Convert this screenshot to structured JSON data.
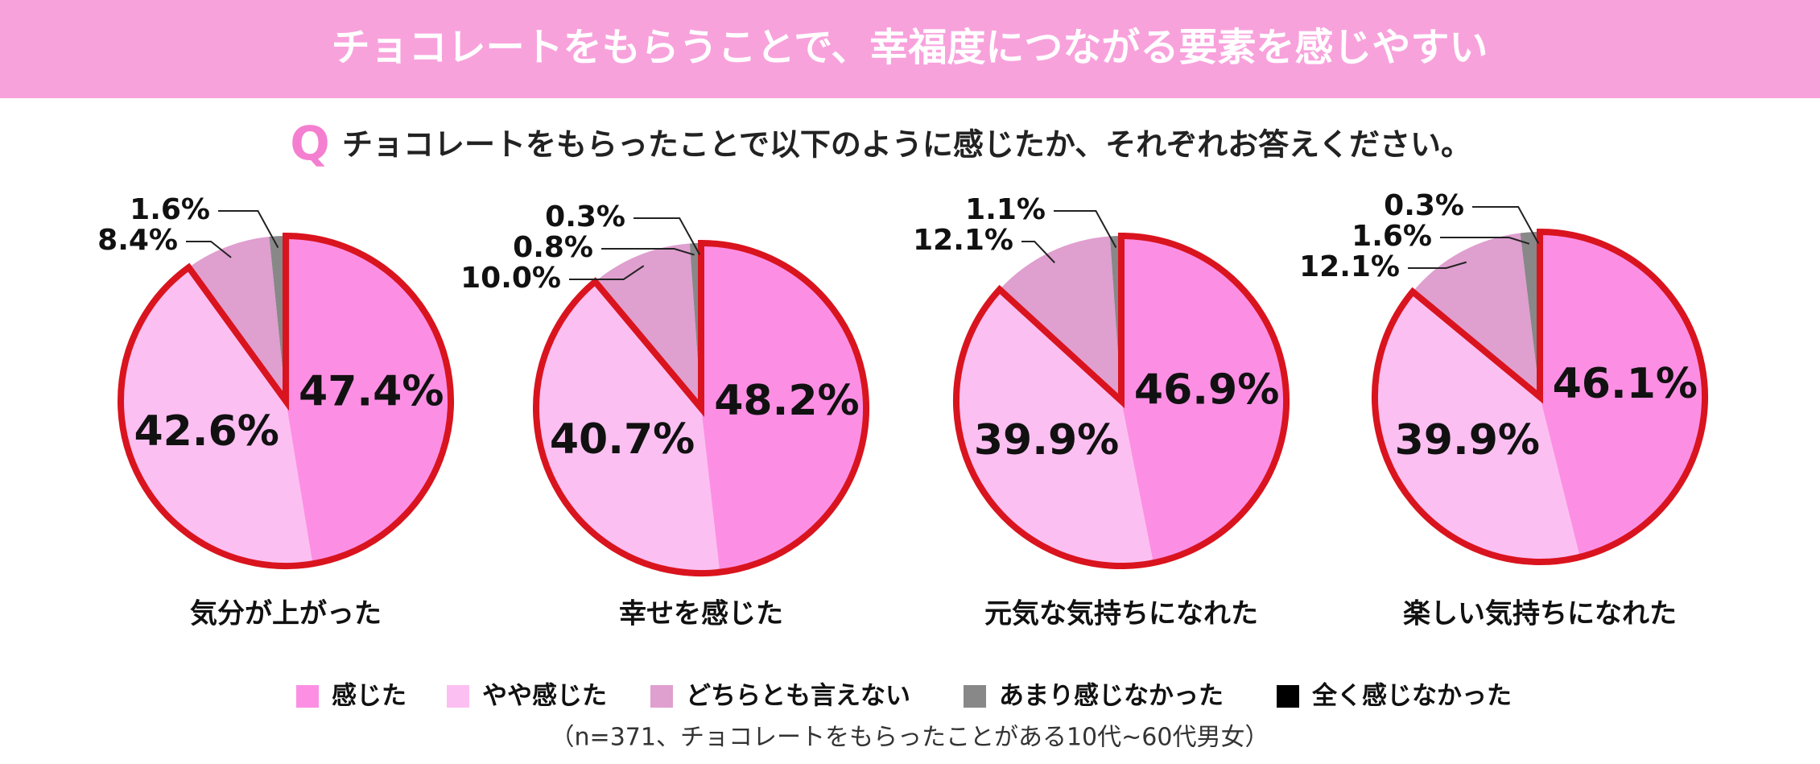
{
  "header": {
    "title": "チョコレートをもらうことで、幸福度につながる要素を感じやすい",
    "question_mark": "Q",
    "question": "チョコレートをもらったことで以下のように感じたか、それぞれお答えください。"
  },
  "chart_data": [
    {
      "type": "pie",
      "title": "気分が上がった",
      "categories": [
        "感じた",
        "やや感じた",
        "どちらとも言えない",
        "あまり感じなかった"
      ],
      "values": [
        47.4,
        42.6,
        8.4,
        1.6
      ],
      "value_labels": [
        "47.4%",
        "42.6%",
        "8.4%",
        "1.6%"
      ],
      "colors": [
        "#fc8fe4",
        "#fcbff1",
        "#df9fcf",
        "#888888"
      ]
    },
    {
      "type": "pie",
      "title": "幸せを感じた",
      "categories": [
        "感じた",
        "やや感じた",
        "どちらとも言えない",
        "あまり感じなかった",
        "全く感じなかった"
      ],
      "values": [
        48.2,
        40.7,
        10.0,
        0.8,
        0.3
      ],
      "value_labels": [
        "48.2%",
        "40.7%",
        "10.0%",
        "0.8%",
        "0.3%"
      ],
      "colors": [
        "#fc8fe4",
        "#fcbff1",
        "#df9fcf",
        "#888888",
        "#000000"
      ]
    },
    {
      "type": "pie",
      "title": "元気な気持ちになれた",
      "categories": [
        "感じた",
        "やや感じた",
        "どちらとも言えない",
        "あまり感じなかった"
      ],
      "values": [
        46.9,
        39.9,
        12.1,
        1.1
      ],
      "value_labels": [
        "46.9%",
        "39.9%",
        "12.1%",
        "1.1%"
      ],
      "colors": [
        "#fc8fe4",
        "#fcbff1",
        "#df9fcf",
        "#888888"
      ]
    },
    {
      "type": "pie",
      "title": "楽しい気持ちになれた",
      "categories": [
        "感じた",
        "やや感じた",
        "どちらとも言えない",
        "あまり感じなかった",
        "全く感じなかった"
      ],
      "values": [
        46.1,
        39.9,
        12.1,
        1.6,
        0.3
      ],
      "value_labels": [
        "46.1%",
        "39.9%",
        "12.1%",
        "1.6%",
        "0.3%"
      ],
      "colors": [
        "#fc8fe4",
        "#fcbff1",
        "#df9fcf",
        "#888888",
        "#000000"
      ]
    }
  ],
  "note": "（n=371、チョコレートをもらったことがある10代~60代男女）"
}
